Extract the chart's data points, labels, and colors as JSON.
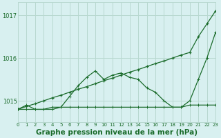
{
  "title": "Graphe pression niveau de la mer (hPa)",
  "bg_color": "#d8f0f0",
  "grid_color": "#b8d8d0",
  "line_color": "#1a6b2a",
  "xlim": [
    0,
    23
  ],
  "ylim": [
    1014.5,
    1017.3
  ],
  "yticks": [
    1015,
    1016,
    1017
  ],
  "xticks": [
    0,
    1,
    2,
    3,
    4,
    5,
    6,
    7,
    8,
    9,
    10,
    11,
    12,
    13,
    14,
    15,
    16,
    17,
    18,
    19,
    20,
    21,
    22,
    23
  ],
  "series1_x": [
    0,
    1,
    2,
    3,
    4,
    5,
    6,
    7,
    8,
    9,
    10,
    11,
    12,
    13,
    14,
    15,
    16,
    17,
    18,
    19,
    20,
    21,
    22,
    23
  ],
  "series1_y": [
    1014.8,
    1014.8,
    1014.8,
    1014.8,
    1014.8,
    1014.85,
    1014.85,
    1014.85,
    1014.85,
    1014.85,
    1014.85,
    1014.85,
    1014.85,
    1014.85,
    1014.85,
    1014.85,
    1014.85,
    1014.85,
    1014.85,
    1014.85,
    1014.9,
    1014.9,
    1014.9,
    1014.9
  ],
  "series2_x": [
    0,
    1,
    2,
    3,
    4,
    5,
    6,
    7,
    8,
    9,
    10,
    11,
    12,
    13,
    14,
    15,
    16,
    17,
    18,
    19,
    20,
    21,
    22,
    23
  ],
  "series2_y": [
    1014.8,
    1014.9,
    1014.8,
    1014.8,
    1014.85,
    1014.85,
    1015.1,
    1015.35,
    1015.55,
    1015.7,
    1015.5,
    1015.6,
    1015.65,
    1015.55,
    1015.5,
    1015.3,
    1015.2,
    1015.0,
    1014.85,
    1014.85,
    1015.0,
    1015.5,
    1016.0,
    1016.6
  ],
  "series3_x": [
    0,
    1,
    2,
    3,
    4,
    5,
    6,
    7,
    8,
    9,
    10,
    11,
    12,
    13,
    14,
    15,
    16,
    17,
    18,
    19,
    20,
    21,
    22,
    23
  ],
  "series3_y": [
    1014.8,
    1014.87,
    1014.93,
    1015.0,
    1015.07,
    1015.13,
    1015.2,
    1015.27,
    1015.33,
    1015.4,
    1015.47,
    1015.53,
    1015.6,
    1015.67,
    1015.73,
    1015.8,
    1015.87,
    1015.93,
    1016.0,
    1016.07,
    1016.13,
    1016.5,
    1016.8,
    1017.1
  ],
  "tick_fontsize": 6.0,
  "label_fontsize": 7.5
}
